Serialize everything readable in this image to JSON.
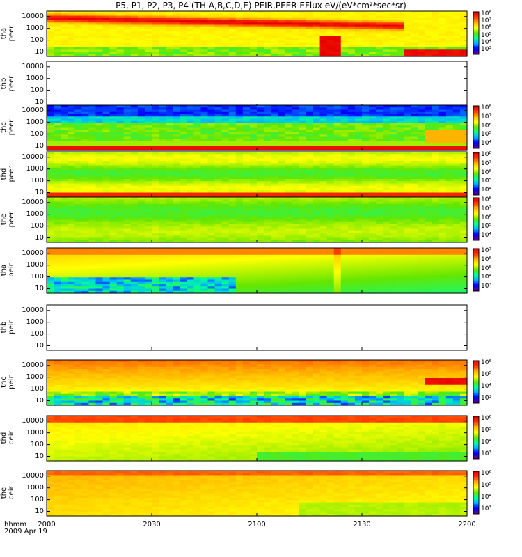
{
  "title": "P5, P1, P2, P3, P4 (TH-A,B,C,D,E) PEIR,PEER EFlux eV/(eV*cm²*sec*sr)",
  "colors": {
    "colormap": [
      "#5a0090",
      "#0000ff",
      "#00b4ff",
      "#00ff96",
      "#64e600",
      "#ffff00",
      "#ffb400",
      "#ff3c00",
      "#e60000"
    ]
  },
  "chart_data": {
    "type": "heatmap",
    "x_axis": {
      "ticks": [
        "2000",
        "2030",
        "2100",
        "2130",
        "2200"
      ],
      "corner_label_line1": "hhmm",
      "corner_label_line2": "2009 Apr 19"
    },
    "panels": [
      {
        "id": "tha-peer",
        "label_line1": "tha",
        "label_line2": "peer",
        "yticks": [
          "10000",
          "1000",
          "100",
          "10"
        ],
        "has_data": true,
        "pattern": "tha_peer",
        "colorbar": [
          "10⁸",
          "10⁷",
          "10⁶",
          "10⁵",
          "10⁴",
          "10³"
        ]
      },
      {
        "id": "thb-peer",
        "label_line1": "thb",
        "label_line2": "peer",
        "yticks": [
          "10000",
          "1000",
          "100",
          "10"
        ],
        "has_data": false,
        "pattern": "empty",
        "colorbar": []
      },
      {
        "id": "thc-peer",
        "label_line1": "thc",
        "label_line2": "peer",
        "yticks": [
          "10000",
          "1000",
          "100",
          "10"
        ],
        "has_data": true,
        "pattern": "thc_peer",
        "colorbar": [
          "10⁸",
          "10⁷",
          "10⁶",
          "10⁵",
          "10⁴"
        ]
      },
      {
        "id": "thd-peer",
        "label_line1": "thd",
        "label_line2": "peer",
        "yticks": [
          "10000",
          "1000",
          "100",
          "10"
        ],
        "has_data": true,
        "pattern": "thd_peer",
        "colorbar": [
          "10⁸",
          "10⁷",
          "10⁶",
          "10⁵",
          "10⁴"
        ]
      },
      {
        "id": "the-peer",
        "label_line1": "the",
        "label_line2": "peer",
        "yticks": [
          "10000",
          "1000",
          "100",
          "10"
        ],
        "has_data": true,
        "pattern": "the_peer",
        "colorbar": [
          "10⁸",
          "10⁷",
          "10⁶",
          "10⁵",
          "10⁴"
        ]
      },
      {
        "id": "tha-peir",
        "label_line1": "tha",
        "label_line2": "peir",
        "yticks": [
          "10000",
          "1000",
          "100",
          "10"
        ],
        "has_data": true,
        "pattern": "tha_peir",
        "colorbar": [
          "10⁷",
          "10⁶",
          "10⁵",
          "10⁴",
          "10³"
        ]
      },
      {
        "id": "thb-peir",
        "label_line1": "thb",
        "label_line2": "peir",
        "yticks": [
          "10000",
          "1000",
          "100",
          "10"
        ],
        "has_data": false,
        "pattern": "empty",
        "colorbar": []
      },
      {
        "id": "thc-peir",
        "label_line1": "thc",
        "label_line2": "peir",
        "yticks": [
          "10000",
          "1000",
          "100",
          "10"
        ],
        "has_data": true,
        "pattern": "thc_peir",
        "colorbar": [
          "10⁶",
          "10⁵",
          "10⁴",
          "10³"
        ]
      },
      {
        "id": "thd-peir",
        "label_line1": "thd",
        "label_line2": "peir",
        "yticks": [
          "10000",
          "1000",
          "100",
          "10"
        ],
        "has_data": true,
        "pattern": "thd_peir",
        "colorbar": [
          "10⁶",
          "10⁵",
          "10⁴",
          "10³"
        ]
      },
      {
        "id": "the-peir",
        "label_line1": "the",
        "label_line2": "peir",
        "yticks": [
          "10000",
          "1000",
          "100",
          "10"
        ],
        "has_data": true,
        "pattern": "the_peir",
        "colorbar": [
          "10⁶",
          "10⁵",
          "10⁴",
          "10³"
        ]
      }
    ]
  }
}
